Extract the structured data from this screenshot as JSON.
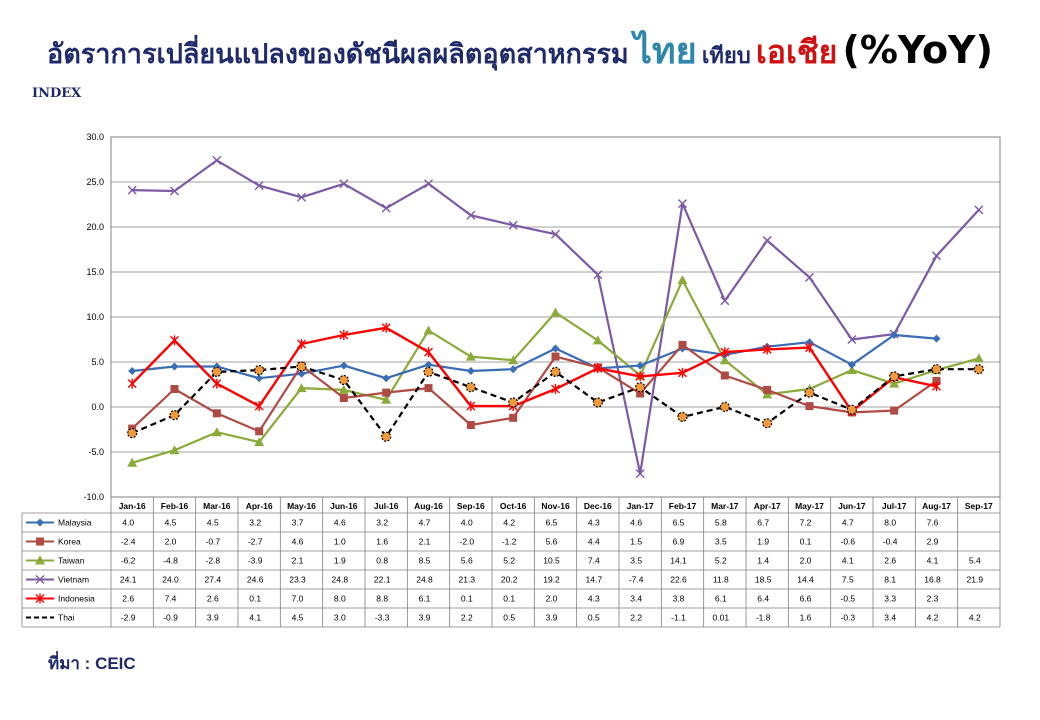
{
  "title": {
    "main": "อัตราการเปลี่ยนแปลงของดัชนีผลผลิตอุตสาหกรรม",
    "thai": "ไทย",
    "mid": "เทียบ",
    "asia": "เอเชีย",
    "yoy": "(%YoY)"
  },
  "source": "ที่มา : CEIC",
  "colors": {
    "Malaysia": "#3a6db3",
    "Korea": "#b04a45",
    "Taiwan": "#8aaa3a",
    "Vietnam": "#7b5aa6",
    "Indonesia": "#ff0000",
    "Thai": "#000000",
    "thai_marker": "#f29a3a"
  },
  "chart_data": {
    "type": "line",
    "ylabel": "INDEX",
    "ylim": [
      -10,
      30
    ],
    "yticks": [
      "-10.0",
      "-5.0",
      "0.0",
      "5.0",
      "10.0",
      "15.0",
      "20.0",
      "25.0",
      "30.0"
    ],
    "grid": true,
    "legend": "data-table-below",
    "categories": [
      "Jan-16",
      "Feb-16",
      "Mar-16",
      "Apr-16",
      "May-16",
      "Jun-16",
      "Jul-16",
      "Aug-16",
      "Sep-16",
      "Oct-16",
      "Nov-16",
      "Dec-16",
      "Jan-17",
      "Feb-17",
      "Mar-17",
      "Apr-17",
      "May-17",
      "Jun-17",
      "Jul-17",
      "Aug-17",
      "Sep-17"
    ],
    "series": [
      {
        "name": "Malaysia",
        "marker": "diamond",
        "dashed": false,
        "values": [
          4.0,
          4.5,
          4.5,
          3.2,
          3.7,
          4.6,
          3.2,
          4.7,
          4.0,
          4.2,
          6.5,
          4.3,
          4.6,
          6.5,
          5.8,
          6.7,
          7.2,
          4.7,
          8.0,
          7.6,
          null
        ],
        "labels": [
          "4.0",
          "4.5",
          "4.5",
          "3.2",
          "3.7",
          "4.6",
          "3.2",
          "4.7",
          "4.0",
          "4.2",
          "6.5",
          "4.3",
          "4.6",
          "6.5",
          "5.8",
          "6.7",
          "7.2",
          "4.7",
          "8.0",
          "7.6",
          ""
        ]
      },
      {
        "name": "Korea",
        "marker": "square",
        "dashed": false,
        "values": [
          -2.4,
          2.0,
          -0.7,
          -2.7,
          4.6,
          1.0,
          1.6,
          2.1,
          -2.0,
          -1.2,
          5.6,
          4.4,
          1.5,
          6.9,
          3.5,
          1.9,
          0.1,
          -0.6,
          -0.4,
          2.9,
          null
        ],
        "labels": [
          "-2.4",
          "2.0",
          "-0.7",
          "-2.7",
          "4.6",
          "1.0",
          "1.6",
          "2.1",
          "-2.0",
          "-1.2",
          "5.6",
          "4.4",
          "1.5",
          "6.9",
          "3.5",
          "1.9",
          "0.1",
          "-0.6",
          "-0.4",
          "2.9",
          ""
        ]
      },
      {
        "name": "Taiwan",
        "marker": "triangle",
        "dashed": false,
        "values": [
          -6.2,
          -4.8,
          -2.8,
          -3.9,
          2.1,
          1.9,
          0.8,
          8.5,
          5.6,
          5.2,
          10.5,
          7.4,
          3.5,
          14.1,
          5.2,
          1.4,
          2.0,
          4.1,
          2.6,
          4.1,
          5.4
        ],
        "labels": [
          "-6.2",
          "-4.8",
          "-2.8",
          "-3.9",
          "2.1",
          "1.9",
          "0.8",
          "8.5",
          "5.6",
          "5.2",
          "10.5",
          "7.4",
          "3.5",
          "14.1",
          "5.2",
          "1.4",
          "2.0",
          "4.1",
          "2.6",
          "4.1",
          "5.4"
        ]
      },
      {
        "name": "Vietnam",
        "marker": "x",
        "dashed": false,
        "values": [
          24.1,
          24.0,
          27.4,
          24.6,
          23.3,
          24.8,
          22.1,
          24.8,
          21.3,
          20.2,
          19.2,
          14.7,
          -7.4,
          22.6,
          11.8,
          18.5,
          14.4,
          7.5,
          8.1,
          16.8,
          21.9
        ],
        "labels": [
          "24.1",
          "24.0",
          "27.4",
          "24.6",
          "23.3",
          "24.8",
          "22.1",
          "24.8",
          "21.3",
          "20.2",
          "19.2",
          "14.7",
          "-7.4",
          "22.6",
          "11.8",
          "18.5",
          "14.4",
          "7.5",
          "8.1",
          "16.8",
          "21.9"
        ]
      },
      {
        "name": "Indonesia",
        "marker": "star",
        "dashed": false,
        "values": [
          2.6,
          7.4,
          2.6,
          0.1,
          7.0,
          8.0,
          8.8,
          6.1,
          0.1,
          0.1,
          2.0,
          4.3,
          3.4,
          3.8,
          6.1,
          6.4,
          6.6,
          -0.5,
          3.3,
          2.3,
          null
        ],
        "labels": [
          "2.6",
          "7.4",
          "2.6",
          "0.1",
          "7.0",
          "8.0",
          "8.8",
          "6.1",
          "0.1",
          "0.1",
          "2.0",
          "4.3",
          "3.4",
          "3.8",
          "6.1",
          "6.4",
          "6.6",
          "-0.5",
          "3.3",
          "2.3",
          ""
        ]
      },
      {
        "name": "Thai",
        "marker": "circle",
        "dashed": true,
        "values": [
          -2.9,
          -0.9,
          3.9,
          4.1,
          4.5,
          3.0,
          -3.3,
          3.9,
          2.2,
          0.5,
          3.9,
          0.5,
          2.2,
          -1.1,
          0.01,
          -1.8,
          1.6,
          -0.3,
          3.4,
          4.2,
          4.2
        ],
        "labels": [
          "-2.9",
          "-0.9",
          "3.9",
          "4.1",
          "4.5",
          "3.0",
          "-3.3",
          "3.9",
          "2.2",
          "0.5",
          "3.9",
          "0.5",
          "2.2",
          "-1.1",
          "0.01",
          "-1.8",
          "1.6",
          "-0.3",
          "3.4",
          "4.2",
          "4.2"
        ]
      }
    ]
  }
}
